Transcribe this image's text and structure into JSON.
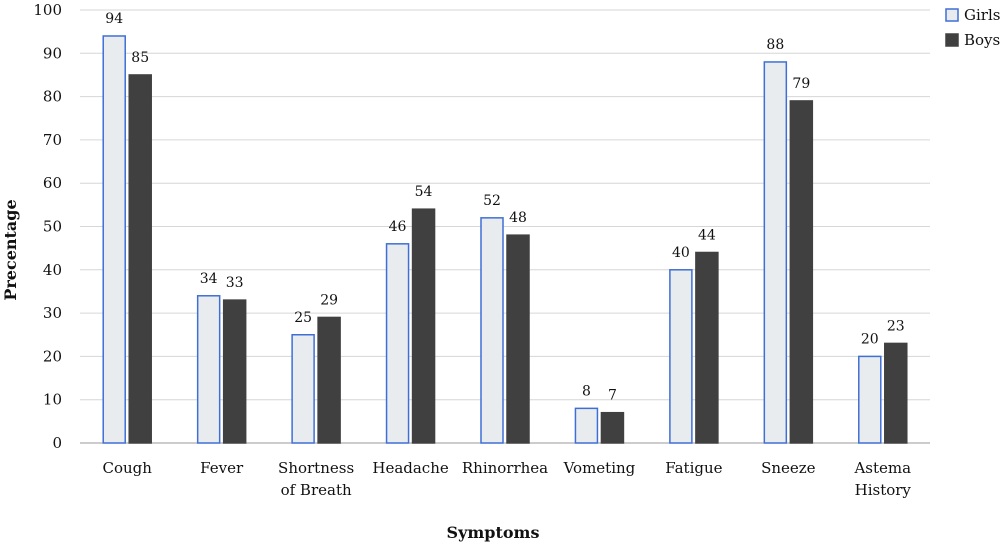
{
  "chart_data": {
    "type": "bar",
    "title": "",
    "xlabel": "Symptoms",
    "ylabel": "Precentage",
    "ylim": [
      0,
      100
    ],
    "yticks": [
      0,
      10,
      20,
      30,
      40,
      50,
      60,
      70,
      80,
      90,
      100
    ],
    "grid": true,
    "legend_position": "top-right",
    "categories": [
      [
        "Cough"
      ],
      [
        "Fever"
      ],
      [
        "Shortness",
        "of Breath"
      ],
      [
        "Headache"
      ],
      [
        "Rhinorrhea"
      ],
      [
        "Vometing"
      ],
      [
        "Fatigue"
      ],
      [
        "Sneeze"
      ],
      [
        "Astema",
        "History"
      ]
    ],
    "series": [
      {
        "name": "Girls",
        "values": [
          94,
          34,
          25,
          46,
          52,
          8,
          40,
          88,
          20
        ],
        "fill": "#e8ecee",
        "stroke": "#3f6fd6"
      },
      {
        "name": "Boys",
        "values": [
          85,
          33,
          29,
          54,
          48,
          7,
          44,
          79,
          23
        ],
        "fill": "#404040",
        "stroke": "#404040"
      }
    ]
  },
  "colors": {
    "grid": "#d6d6d6",
    "axis": "#9a9a9a"
  }
}
